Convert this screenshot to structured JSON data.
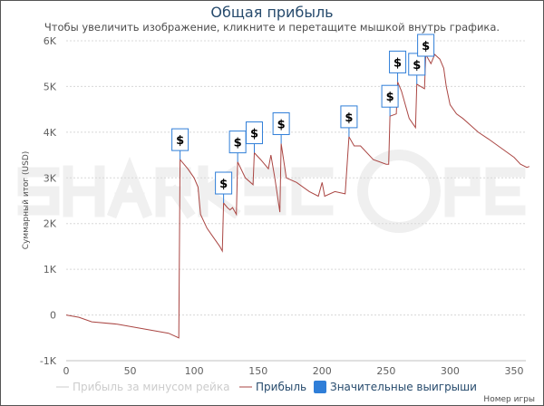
{
  "chart_data": {
    "type": "line",
    "title": "Общая прибыль",
    "subtitle": "Чтобы увеличить изображение, кликните и перетащите мышкой внутрь графика.",
    "xlabel": "Номер игры",
    "ylabel": "Суммарный итог (USD)",
    "xlim": [
      0,
      362
    ],
    "ylim": [
      -1000,
      6000
    ],
    "x_ticks": [
      "0",
      "50",
      "100",
      "150",
      "200",
      "250",
      "300",
      "350"
    ],
    "x_tick_values": [
      0,
      50,
      100,
      150,
      200,
      250,
      300,
      350
    ],
    "y_ticks": [
      "-1K",
      "0",
      "1K",
      "2K",
      "3K",
      "4K",
      "5K",
      "6K"
    ],
    "y_tick_values": [
      -1000,
      0,
      1000,
      2000,
      3000,
      4000,
      5000,
      6000
    ],
    "grid": "horizontal dashed",
    "legend_placement": "bottom",
    "watermark": "SHARKSCOPE",
    "series": [
      {
        "name": "Прибыль за минусом рейка",
        "color": "#cccccc",
        "hidden": true,
        "points": []
      },
      {
        "name": "Прибыль",
        "color": "#aa4643",
        "points": [
          [
            0,
            0
          ],
          [
            10,
            -50
          ],
          [
            20,
            -150
          ],
          [
            40,
            -200
          ],
          [
            60,
            -300
          ],
          [
            80,
            -400
          ],
          [
            88,
            -500
          ],
          [
            89,
            3400
          ],
          [
            95,
            3200
          ],
          [
            100,
            3000
          ],
          [
            103,
            2800
          ],
          [
            105,
            2200
          ],
          [
            110,
            1900
          ],
          [
            115,
            1700
          ],
          [
            120,
            1500
          ],
          [
            122,
            1400
          ],
          [
            123,
            2450
          ],
          [
            126,
            2350
          ],
          [
            128,
            2300
          ],
          [
            130,
            2350
          ],
          [
            133,
            2200
          ],
          [
            134,
            3350
          ],
          [
            140,
            3000
          ],
          [
            146,
            2850
          ],
          [
            147,
            3550
          ],
          [
            152,
            3400
          ],
          [
            158,
            3200
          ],
          [
            160,
            3500
          ],
          [
            163,
            3000
          ],
          [
            167,
            2250
          ],
          [
            168,
            3750
          ],
          [
            172,
            3000
          ],
          [
            180,
            2900
          ],
          [
            190,
            2700
          ],
          [
            197,
            2600
          ],
          [
            200,
            2900
          ],
          [
            202,
            2600
          ],
          [
            210,
            2700
          ],
          [
            218,
            2650
          ],
          [
            221,
            3900
          ],
          [
            225,
            3700
          ],
          [
            230,
            3700
          ],
          [
            240,
            3400
          ],
          [
            250,
            3300
          ],
          [
            252,
            3300
          ],
          [
            253,
            4350
          ],
          [
            258,
            4400
          ],
          [
            259,
            5100
          ],
          [
            262,
            4900
          ],
          [
            268,
            4300
          ],
          [
            273,
            4100
          ],
          [
            274,
            5050
          ],
          [
            277,
            5000
          ],
          [
            280,
            4950
          ],
          [
            281,
            5700
          ],
          [
            285,
            5500
          ],
          [
            288,
            5700
          ],
          [
            292,
            5600
          ],
          [
            295,
            5400
          ],
          [
            297,
            5000
          ],
          [
            300,
            4600
          ],
          [
            305,
            4400
          ],
          [
            310,
            4300
          ],
          [
            316,
            4150
          ],
          [
            322,
            4000
          ],
          [
            330,
            3850
          ],
          [
            340,
            3650
          ],
          [
            350,
            3450
          ],
          [
            355,
            3300
          ],
          [
            360,
            3230
          ],
          [
            362,
            3250
          ]
        ]
      }
    ],
    "markers": {
      "name": "Значительные выигрыши",
      "color": "#2f7ed8",
      "symbol": "$",
      "games": [
        89,
        123,
        134,
        147,
        168,
        221,
        253,
        259,
        274,
        281
      ]
    }
  }
}
